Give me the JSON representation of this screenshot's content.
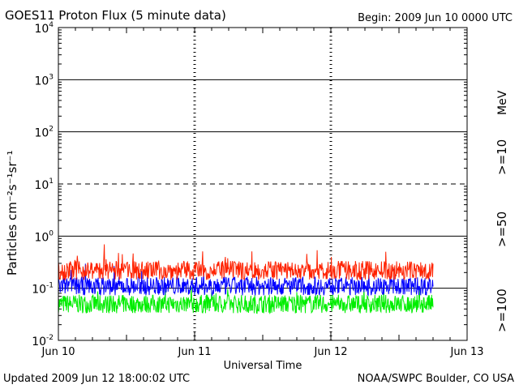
{
  "header": {
    "title": "GOES11 Proton Flux (5 minute data)",
    "begin": "Begin: 2009 Jun 10 0000 UTC"
  },
  "footer": {
    "updated": "Updated 2009 Jun 12 18:00:02 UTC",
    "credit": "NOAA/SWPC Boulder, CO USA"
  },
  "chart_data": {
    "type": "line",
    "xlabel": "Universal Time",
    "ylabel": "Particles cm⁻²s⁻¹sr⁻¹",
    "yscale": "log",
    "ylim": [
      0.01,
      10000
    ],
    "y_ticks": [
      {
        "value": 0.01,
        "base": "10",
        "exp": "-2"
      },
      {
        "value": 0.1,
        "base": "10",
        "exp": "-1"
      },
      {
        "value": 1,
        "base": "10",
        "exp": "0"
      },
      {
        "value": 10,
        "base": "10",
        "exp": "1"
      },
      {
        "value": 100,
        "base": "10",
        "exp": "2"
      },
      {
        "value": 1000,
        "base": "10",
        "exp": "3"
      },
      {
        "value": 10000,
        "base": "10",
        "exp": "4"
      }
    ],
    "x_ticks": [
      "Jun 10",
      "Jun 11",
      "Jun 12",
      "Jun 13"
    ],
    "xlim": [
      "2009-06-10 00:00",
      "2009-06-13 00:00"
    ],
    "unit_label": "MeV",
    "series": [
      {
        "name": ">=10",
        "color": "#ff2200",
        "typical": 0.22,
        "range": [
          0.12,
          0.75
        ],
        "end": "2009-06-12 18:00"
      },
      {
        "name": ">=50",
        "color": "#0000ff",
        "typical": 0.11,
        "range": [
          0.05,
          0.3
        ],
        "end": "2009-06-12 18:00"
      },
      {
        "name": ">=100",
        "color": "#00ee00",
        "typical": 0.05,
        "range": [
          0.028,
          0.12
        ],
        "end": "2009-06-12 18:00"
      }
    ]
  }
}
